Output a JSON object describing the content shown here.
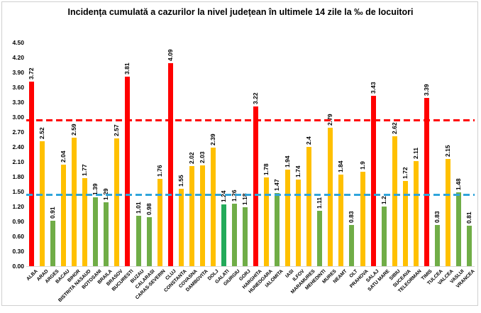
{
  "title": "Incidența cumulată a cazurilor la nivel județean în ultimele 14 zile la ‰ de locuitori",
  "chart_data": {
    "type": "bar",
    "title": "Incidența cumulată a cazurilor la nivel județean în ultimele 14 zile la ‰ de locuitori",
    "xlabel": "",
    "ylabel": "",
    "ylim": [
      0,
      4.5
    ],
    "grid": false,
    "legend": "none",
    "y_ticks": [
      "0.00",
      "0.30",
      "0.60",
      "0.90",
      "1.20",
      "1.50",
      "1.80",
      "2.10",
      "2.40",
      "2.70",
      "3.00",
      "3.30",
      "3.60",
      "3.90",
      "4.20",
      "4.50"
    ],
    "categories": [
      "ALBA",
      "ARAD",
      "ARGES",
      "BACAU",
      "BIHOR",
      "BISTRITA NASAUD",
      "BOTOSANI",
      "BRAILA",
      "BRASOV",
      "BUCURESTI",
      "BUZAU",
      "CALARASI",
      "CARAS-SEVERIN",
      "CLUJ",
      "CONSTANTA",
      "COVASNA",
      "DAMBOVITA",
      "DOLJ",
      "GALATI",
      "GIURGIU",
      "GORJ",
      "HARGHITA",
      "HUNEDOARA",
      "IALOMITA",
      "IASI",
      "ILFOV",
      "MARAMURES",
      "MEHEDINTI",
      "MURES",
      "NEAMT",
      "OLT",
      "PRAHOVA",
      "SALAJ",
      "SATU MARE",
      "SIBIU",
      "SUCEAVA",
      "TELEORMAN",
      "TIMIS",
      "TULCEA",
      "VALCEA",
      "VASLUI",
      "VRANCEA"
    ],
    "values": [
      3.72,
      2.52,
      0.91,
      2.04,
      2.59,
      1.77,
      1.39,
      1.29,
      2.57,
      3.81,
      1.01,
      0.98,
      1.76,
      4.09,
      1.55,
      2.02,
      2.03,
      2.39,
      1.24,
      1.26,
      1.18,
      3.22,
      1.78,
      1.47,
      1.94,
      1.74,
      2.4,
      1.11,
      2.79,
      1.84,
      0.83,
      1.9,
      3.43,
      1.2,
      2.62,
      1.72,
      2.11,
      3.39,
      0.83,
      2.15,
      1.48,
      0.81
    ],
    "value_labels": [
      "3.72",
      "2.52",
      "0.91",
      "2.04",
      "2.59",
      "1.77",
      "1.39",
      "1.29",
      "2.57",
      "3.81",
      "1.01",
      "0.98",
      "1.76",
      "4.09",
      "1.55",
      "2.02",
      "2.03",
      "2.39",
      "1.24",
      "1.26",
      "1.18",
      "3.22",
      "1.78",
      "1.47",
      "1.94",
      "1.74",
      "2.4",
      "1.11",
      "2.79",
      "1.84",
      "0.83",
      "1.9",
      "3.43",
      "1.2",
      "2.62",
      "1.72",
      "2.11",
      "3.39",
      "0.83",
      "2.15",
      "1.48",
      "0.81"
    ],
    "bar_colors": [
      "red",
      "yellow",
      "green",
      "yellow",
      "yellow",
      "yellow",
      "green",
      "green",
      "yellow",
      "red",
      "green",
      "green",
      "yellow",
      "red",
      "yellow",
      "yellow",
      "yellow",
      "yellow",
      "green_dark",
      "green",
      "green",
      "red",
      "yellow",
      "green",
      "yellow",
      "yellow",
      "yellow",
      "green",
      "yellow",
      "yellow",
      "green",
      "yellow",
      "red",
      "green",
      "yellow",
      "yellow",
      "yellow",
      "red",
      "green",
      "yellow",
      "green",
      "green"
    ],
    "palette": {
      "red": "#FF0000",
      "yellow": "#FFC000",
      "green": "#70AD47",
      "green_dark": "#23AA5A"
    },
    "reference_lines": [
      {
        "name": "red-threshold-line",
        "value": 3.0,
        "color": "#FF0000",
        "style": "dashed"
      },
      {
        "name": "blue-threshold-line",
        "value": 1.5,
        "color": "#2FA5DB",
        "style": "dashed"
      }
    ]
  }
}
